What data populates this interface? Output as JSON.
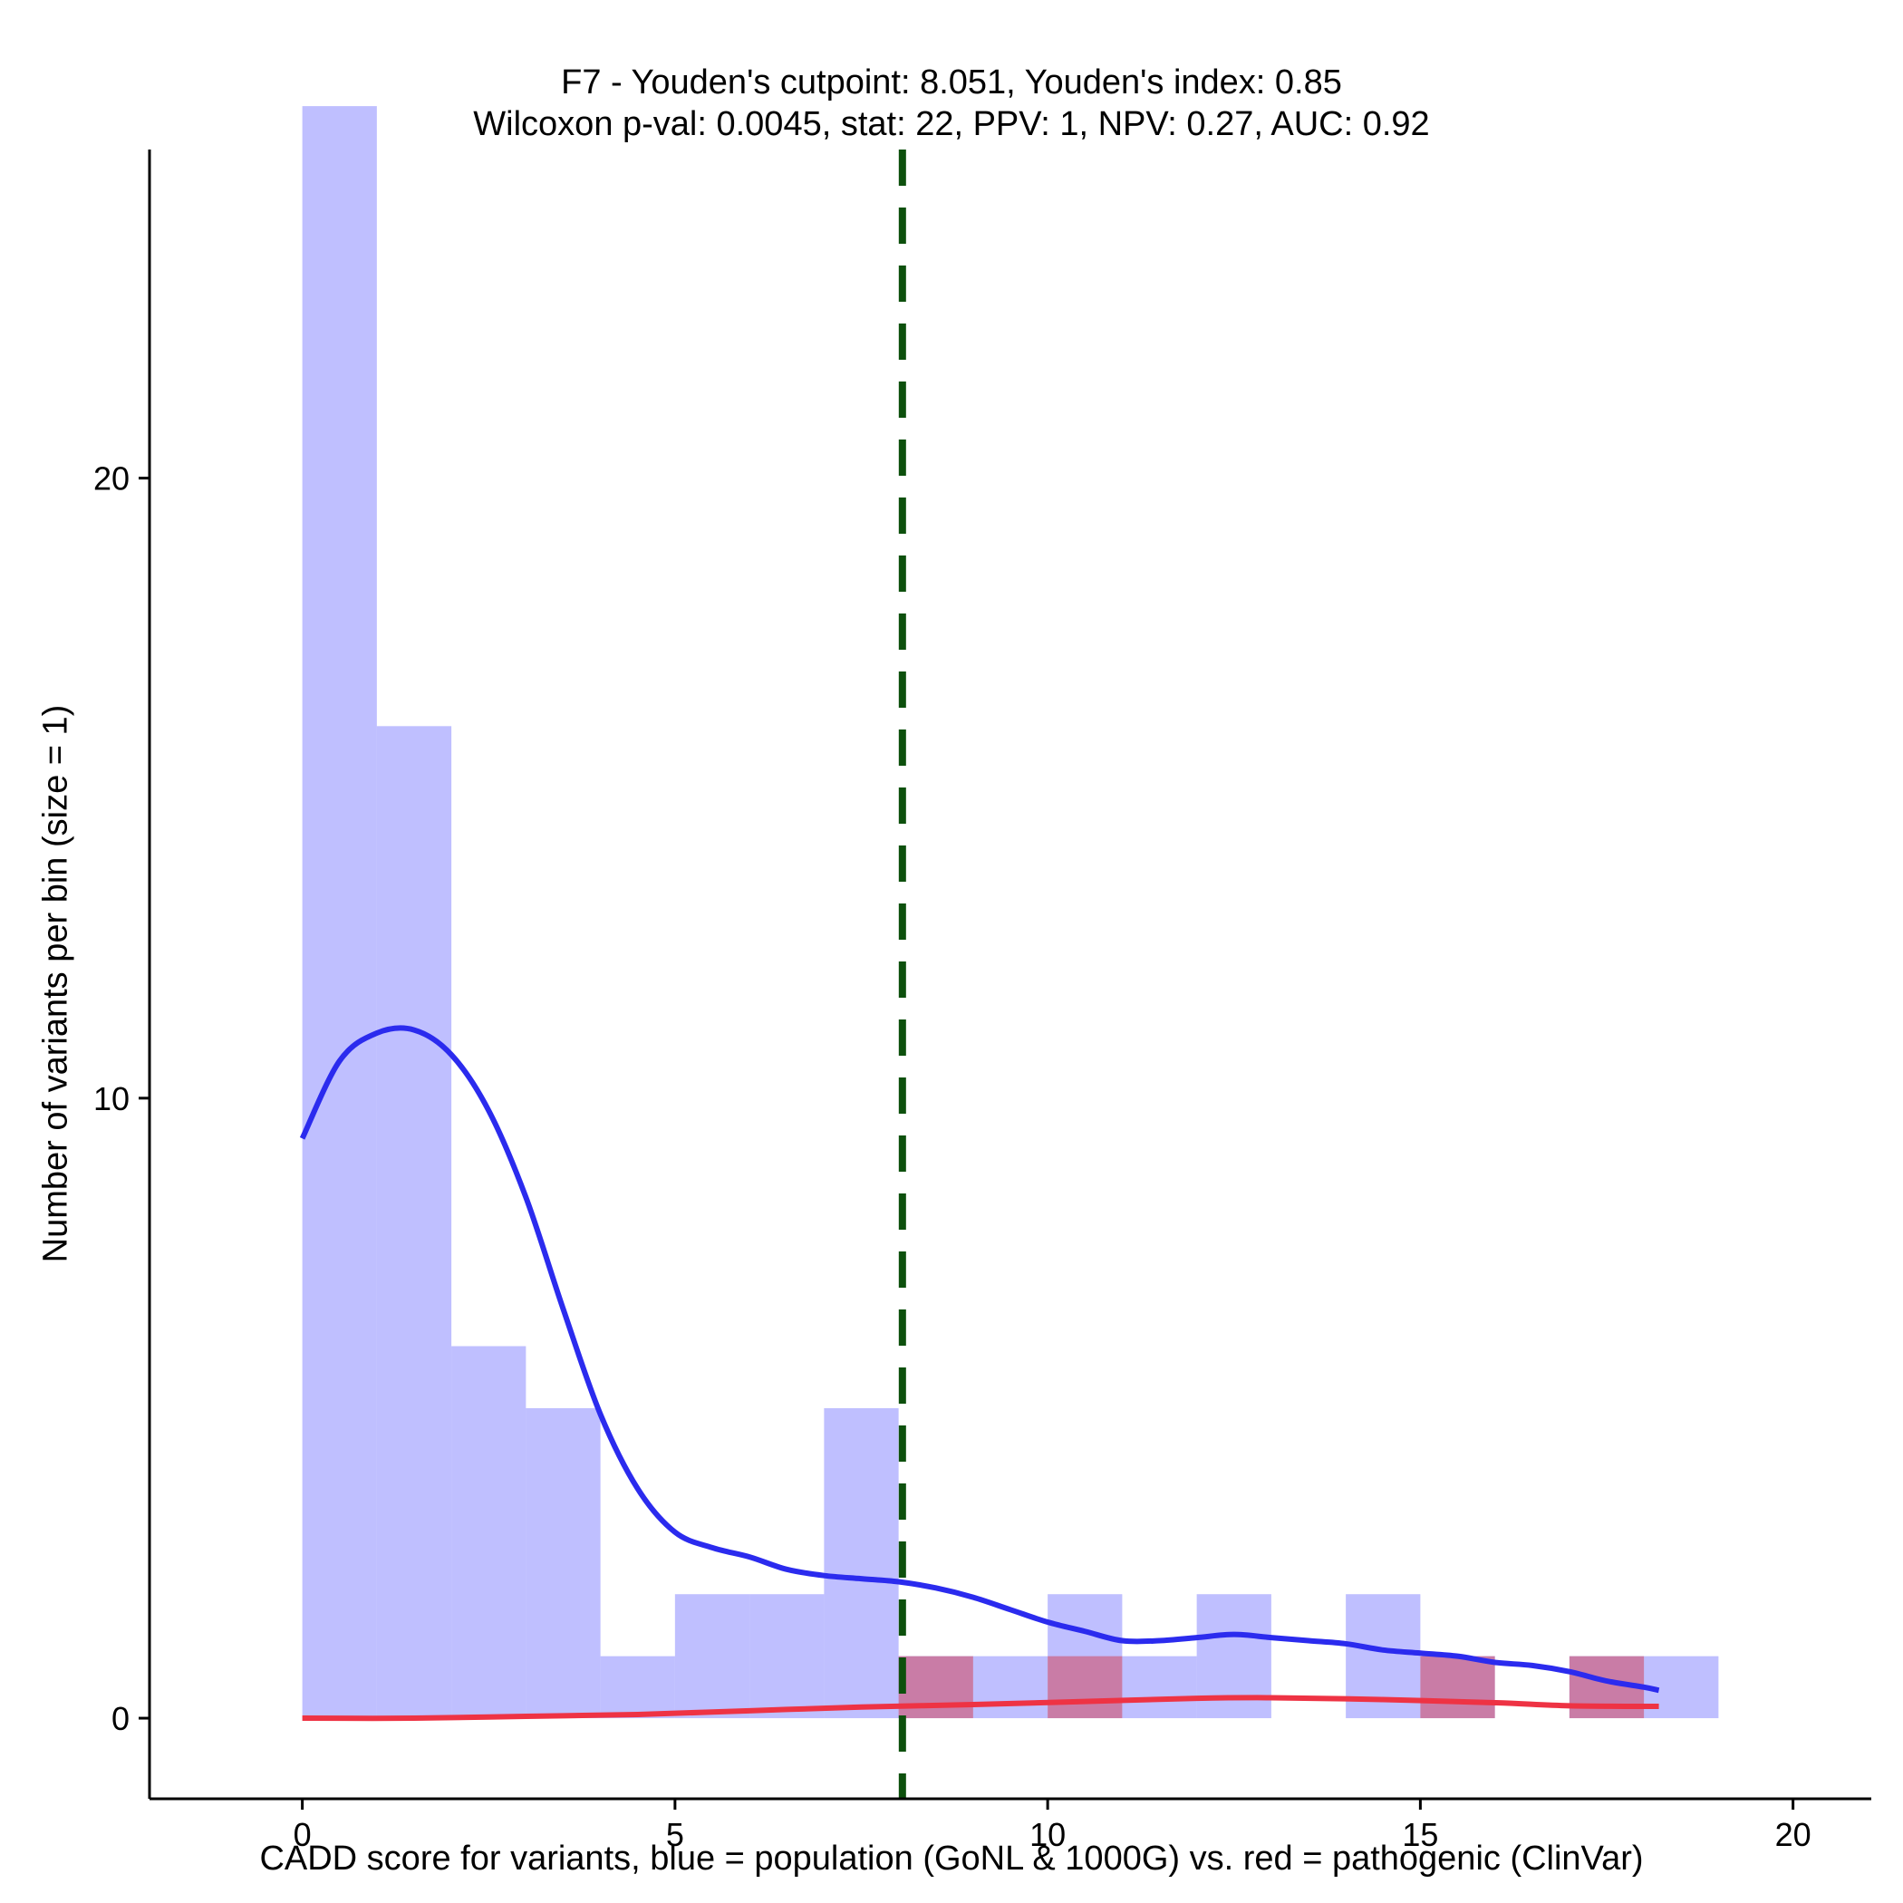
{
  "chart_data": {
    "type": "histogram",
    "title_line1": "F7 - Youden's cutpoint: 8.051, Youden's index: 0.85",
    "title_line2": "Wilcoxon p-val: 0.0045, stat: 22, PPV: 1, NPV: 0.27, AUC: 0.92",
    "xlabel": "CADD score for variants, blue = population (GoNL & 1000G) vs. red = pathogenic (ClinVar)",
    "ylabel": "Number of variants per bin (size = 1)",
    "xlim": [
      -2.05,
      21.05
    ],
    "ylim": [
      -1.3,
      25.3
    ],
    "x_ticks": [
      0,
      5,
      10,
      15,
      20
    ],
    "y_ticks": [
      0,
      10,
      20
    ],
    "cutpoint": 8.051,
    "colors": {
      "population": "#8080ff",
      "pathogenic": "#cc6688",
      "population_line": "#2b2bee",
      "pathogenic_line": "#ee3344",
      "cutpoint_line": "#0d500d"
    },
    "series": [
      {
        "name": "population",
        "bins": [
          [
            0,
            1,
            26
          ],
          [
            1,
            2,
            16
          ],
          [
            2,
            3,
            6
          ],
          [
            3,
            4,
            5
          ],
          [
            4,
            5,
            1
          ],
          [
            5,
            6,
            2
          ],
          [
            6,
            7,
            2
          ],
          [
            7,
            8,
            5
          ],
          [
            8,
            9,
            1
          ],
          [
            9,
            10,
            1
          ],
          [
            10,
            11,
            2
          ],
          [
            11,
            12,
            1
          ],
          [
            12,
            13,
            2
          ],
          [
            13,
            14,
            0
          ],
          [
            14,
            15,
            2
          ],
          [
            15,
            16,
            1
          ],
          [
            16,
            17,
            0
          ],
          [
            17,
            18,
            1
          ],
          [
            18,
            19,
            1
          ]
        ],
        "density_curve": [
          [
            0,
            9.35
          ],
          [
            0.5,
            10.6
          ],
          [
            1,
            11.05
          ],
          [
            1.5,
            11.1
          ],
          [
            2,
            10.7
          ],
          [
            2.5,
            9.8
          ],
          [
            3,
            8.4
          ],
          [
            3.5,
            6.6
          ],
          [
            4,
            4.9
          ],
          [
            4.5,
            3.7
          ],
          [
            5,
            3.0
          ],
          [
            5.5,
            2.75
          ],
          [
            6,
            2.6
          ],
          [
            6.5,
            2.4
          ],
          [
            7,
            2.3
          ],
          [
            7.5,
            2.25
          ],
          [
            8,
            2.2
          ],
          [
            8.5,
            2.1
          ],
          [
            9,
            1.95
          ],
          [
            9.5,
            1.75
          ],
          [
            10,
            1.55
          ],
          [
            10.5,
            1.4
          ],
          [
            11,
            1.25
          ],
          [
            11.5,
            1.25
          ],
          [
            12,
            1.3
          ],
          [
            12.5,
            1.35
          ],
          [
            13,
            1.3
          ],
          [
            13.5,
            1.25
          ],
          [
            14,
            1.2
          ],
          [
            14.5,
            1.1
          ],
          [
            15,
            1.05
          ],
          [
            15.5,
            1.0
          ],
          [
            16,
            0.9
          ],
          [
            16.5,
            0.85
          ],
          [
            17,
            0.75
          ],
          [
            17.5,
            0.6
          ],
          [
            18,
            0.5
          ],
          [
            18.2,
            0.45
          ]
        ]
      },
      {
        "name": "pathogenic",
        "bins": [
          [
            8,
            9,
            1
          ],
          [
            10,
            11,
            1
          ],
          [
            15,
            16,
            1
          ],
          [
            17,
            18,
            1
          ]
        ],
        "density_curve": [
          [
            0,
            0.0
          ],
          [
            1.5,
            0.0
          ],
          [
            3,
            0.03
          ],
          [
            4.5,
            0.06
          ],
          [
            6,
            0.12
          ],
          [
            7.5,
            0.18
          ],
          [
            9,
            0.22
          ],
          [
            10.5,
            0.27
          ],
          [
            12,
            0.32
          ],
          [
            13,
            0.33
          ],
          [
            14.5,
            0.3
          ],
          [
            16,
            0.25
          ],
          [
            17,
            0.2
          ],
          [
            18.2,
            0.19
          ]
        ]
      }
    ]
  }
}
